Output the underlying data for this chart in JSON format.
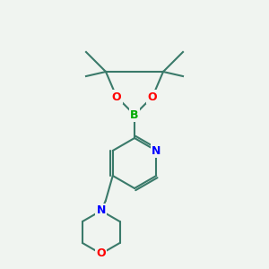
{
  "background_color": "#f0f4f0",
  "bond_color": "#3a7a6a",
  "bond_width": 1.5,
  "atom_colors": {
    "B": "#00aa00",
    "O": "#ff0000",
    "N": "#0000ff",
    "C": "#000000"
  },
  "font_size": 9
}
